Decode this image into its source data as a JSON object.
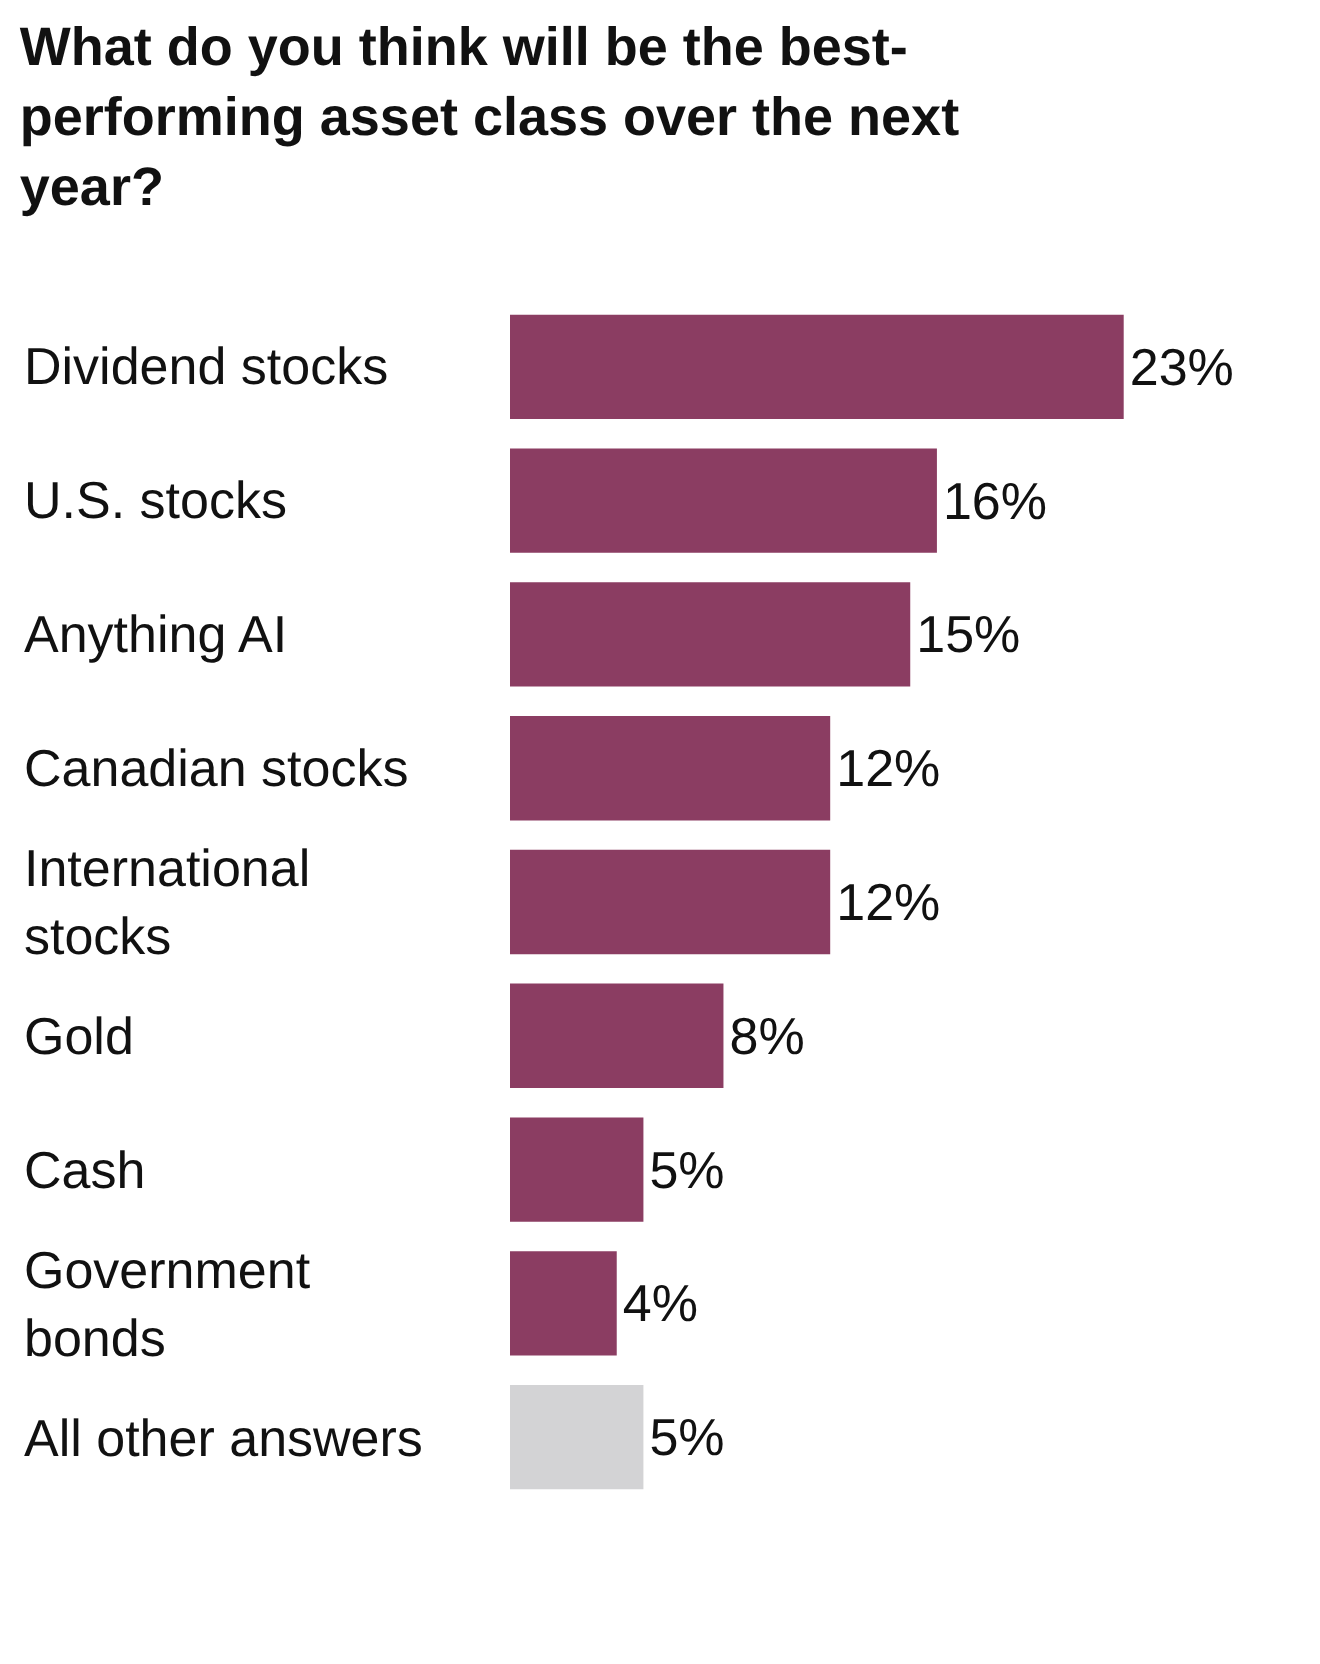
{
  "chart_data": {
    "type": "bar",
    "orientation": "horizontal",
    "title": "What do you think will be the best-performing asset class over the next year?",
    "categories": [
      "Dividend stocks",
      "U.S. stocks",
      "Anything AI",
      "Canadian stocks",
      "International\nstocks",
      "Gold",
      "Cash",
      "Government\nbonds",
      "All other answers"
    ],
    "values": [
      23,
      16,
      15,
      12,
      12,
      8,
      5,
      4,
      5
    ],
    "colors": [
      "#8b3d62",
      "#8b3d62",
      "#8b3d62",
      "#8b3d62",
      "#8b3d62",
      "#8b3d62",
      "#8b3d62",
      "#8b3d62",
      "#d3d3d5"
    ],
    "value_labels": [
      "23%",
      "16%",
      "15%",
      "12%",
      "12%",
      "8%",
      "5%",
      "4%",
      "5%"
    ]
  }
}
